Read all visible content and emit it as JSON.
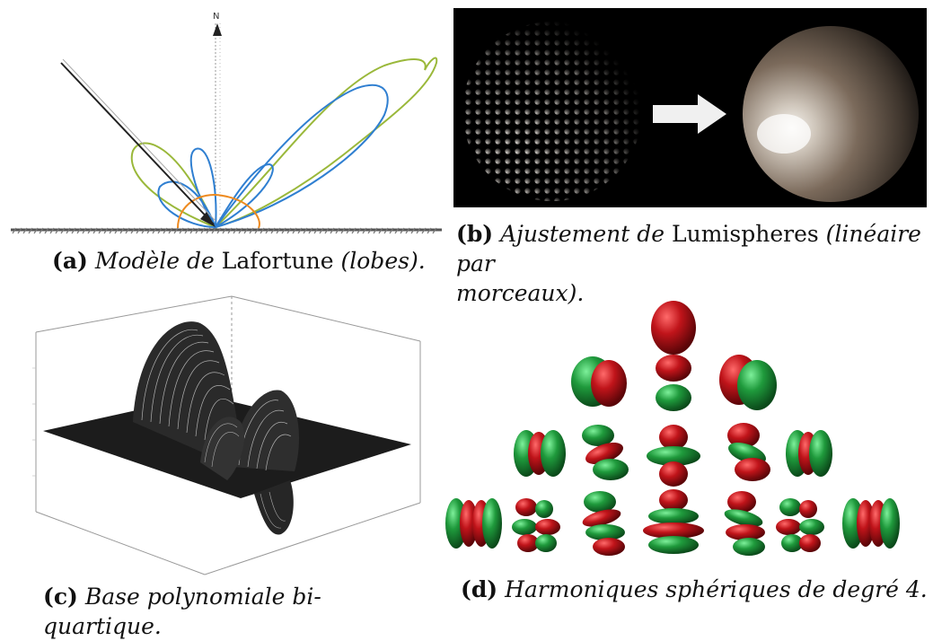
{
  "figure": {
    "panels": [
      {
        "id": "a",
        "tag": "(a)",
        "caption_parts": [
          {
            "text": "Modèle de ",
            "style": "it"
          },
          {
            "text": "Lafortune",
            "style": "rm"
          },
          {
            "text": " (lobes).",
            "style": "it"
          }
        ],
        "axis_label": "N",
        "colors": {
          "outer_lobe": "#9ab83a",
          "mid_lobe": "#2f7fd1",
          "small_lobe": "#ee8a1f",
          "arrow": "#222222"
        }
      },
      {
        "id": "b",
        "tag": "(b)",
        "caption_line1_parts": [
          {
            "text": "Ajustement de ",
            "style": "it"
          },
          {
            "text": "Lumispheres",
            "style": "rm"
          },
          {
            "text": " (linéaire par",
            "style": "it"
          }
        ],
        "caption_line2_parts": [
          {
            "text": "morceaux).",
            "style": "it"
          }
        ]
      },
      {
        "id": "c",
        "tag": "(c)",
        "caption_parts": [
          {
            "text": "Base polynomiale bi-quartique.",
            "style": "it"
          }
        ]
      },
      {
        "id": "d",
        "tag": "(d)",
        "caption_parts": [
          {
            "text": "Harmoniques sphériques de degré 4.",
            "style": "it"
          }
        ],
        "colors": {
          "positive": "#c0141a",
          "negative": "#1f9a3c"
        }
      }
    ]
  }
}
